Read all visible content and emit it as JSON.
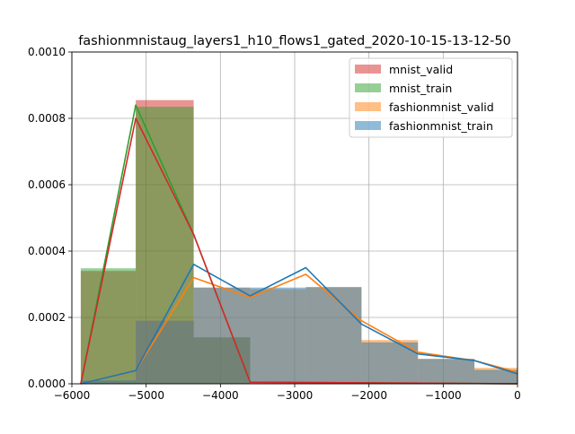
{
  "chart_data": {
    "type": "bar",
    "title": "fashionmnistaug_layers1_h10_flows1_gated_2020-10-15-13-12-50",
    "xlabel": "",
    "ylabel": "",
    "xlim": [
      -6000,
      0
    ],
    "ylim": [
      0,
      0.001
    ],
    "xticks": [
      -6000,
      -5000,
      -4000,
      -3000,
      -2000,
      -1000,
      0
    ],
    "xtick_labels": [
      "−6000",
      "−5000",
      "−4000",
      "−3000",
      "−2000",
      "−1000",
      "0"
    ],
    "yticks": [
      0,
      0.0002,
      0.0004,
      0.0006,
      0.0008,
      0.001
    ],
    "ytick_labels": [
      "0.0000",
      "0.0002",
      "0.0004",
      "0.0006",
      "0.0008",
      "0.0010"
    ],
    "grid": true,
    "legend_position": "top-right",
    "series": [
      {
        "name": "mnist_valid",
        "color": "#d62728",
        "bins": [
          [
            -5880,
            -5140,
            0.00034
          ],
          [
            -5140,
            -4360,
            0.000855
          ],
          [
            -4360,
            -3600,
            0.00014
          ]
        ],
        "line_x": [
          -5880,
          -5140,
          -4360,
          -3600,
          0
        ],
        "line_y": [
          0.0,
          0.0008,
          0.00045,
          5e-06,
          0.0
        ]
      },
      {
        "name": "mnist_train",
        "color": "#2ca02c",
        "bins": [
          [
            -5880,
            -5140,
            0.000348
          ],
          [
            -5140,
            -4360,
            0.000835
          ],
          [
            -4360,
            -3600,
            0.00014
          ]
        ],
        "line_x": [
          -5880,
          -5140,
          -4360,
          -3600,
          0
        ],
        "line_y": [
          0.0,
          0.00084,
          0.00045,
          5e-06,
          0.0
        ]
      },
      {
        "name": "fashionmnist_valid",
        "color": "#ff7f0e",
        "bins": [
          [
            -5880,
            -5140,
            5e-06
          ],
          [
            -5140,
            -4360,
            0.00019
          ],
          [
            -4360,
            -3600,
            0.00029
          ],
          [
            -3600,
            -2850,
            0.000285
          ],
          [
            -2850,
            -2100,
            0.00029
          ],
          [
            -2100,
            -1340,
            0.000132
          ],
          [
            -1340,
            -580,
            7.5e-05
          ],
          [
            -580,
            0,
            4.8e-05
          ]
        ],
        "line_x": [
          -5880,
          -5140,
          -4360,
          -3600,
          -2850,
          -2100,
          -1340,
          -580,
          0
        ],
        "line_y": [
          0.0,
          4e-05,
          0.00032,
          0.00026,
          0.00033,
          0.00019,
          9.5e-05,
          7e-05,
          3.5e-05
        ]
      },
      {
        "name": "fashionmnist_train",
        "color": "#1f77b4",
        "bins": [
          [
            -5880,
            -5140,
            1e-05
          ],
          [
            -5140,
            -4360,
            0.00019
          ],
          [
            -4360,
            -3600,
            0.00029
          ],
          [
            -3600,
            -2850,
            0.00029
          ],
          [
            -2850,
            -2100,
            0.000292
          ],
          [
            -2100,
            -1340,
            0.000125
          ],
          [
            -1340,
            -580,
            7.5e-05
          ],
          [
            -580,
            0,
            4.2e-05
          ]
        ],
        "line_x": [
          -5880,
          -5140,
          -4360,
          -3600,
          -2850,
          -2100,
          -1340,
          -580,
          0
        ],
        "line_y": [
          0.0,
          4e-05,
          0.00036,
          0.000265,
          0.00035,
          0.00018,
          9e-05,
          7e-05,
          3e-05
        ]
      }
    ],
    "legend_order": [
      "mnist_valid",
      "mnist_train",
      "fashionmnist_valid",
      "fashionmnist_train"
    ],
    "line_draw_order": [
      "fashionmnist_valid",
      "fashionmnist_train",
      "mnist_train",
      "mnist_valid"
    ]
  }
}
